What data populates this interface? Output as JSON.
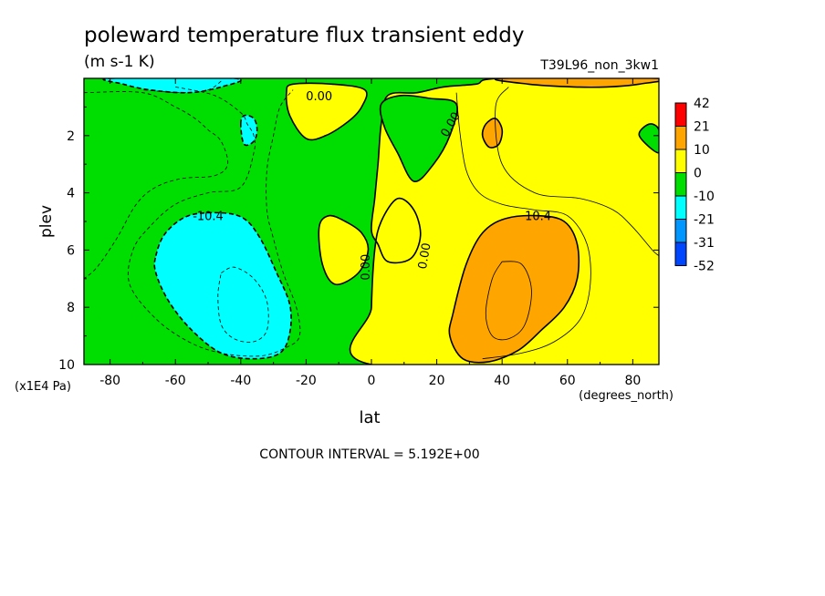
{
  "chart_data": {
    "type": "heatmap",
    "title": "poleward temperature flux transient eddy",
    "units": "(m s-1 K)",
    "dataset": "T39L96_non_3kw1",
    "xlabel": "lat",
    "xunits": "(degrees_north)",
    "ylabel": "plev",
    "yunits": "(x1E4 Pa)",
    "xlim": [
      -88,
      88
    ],
    "ylim": [
      10,
      0
    ],
    "xticks": [
      -80,
      -60,
      -40,
      -20,
      0,
      20,
      40,
      60,
      80
    ],
    "xtick_labels": [
      "-80",
      "-60",
      "-40",
      "-20",
      "0",
      "20",
      "40",
      "60",
      "80"
    ],
    "yticks": [
      2,
      4,
      6,
      8,
      10
    ],
    "ytick_labels": [
      "2",
      "4",
      "6",
      "8",
      "10"
    ],
    "footer": "CONTOUR INTERVAL = 5.192E+00",
    "colorbar": {
      "labels": [
        "42",
        "21",
        "10",
        "0",
        "-10",
        "-21",
        "-31",
        "-52"
      ],
      "colors": [
        "#ff0000",
        "#ffa500",
        "#ffff00",
        "#00dd00",
        "#00ffff",
        "#0096ff",
        "#0046ff"
      ]
    },
    "contour_labels": [
      {
        "text": "0.00",
        "lat": -16,
        "plev": 0.6,
        "rotate": 0
      },
      {
        "text": "0.00",
        "lat": 24,
        "plev": 1.6,
        "rotate": -60
      },
      {
        "text": "-10.4",
        "lat": -50,
        "plev": 4.8,
        "rotate": 0
      },
      {
        "text": "10.4",
        "lat": 51,
        "plev": 4.8,
        "rotate": 0
      },
      {
        "text": "0.00",
        "lat": -2,
        "plev": 6.6,
        "rotate": -90
      },
      {
        "text": "0.00",
        "lat": 16,
        "plev": 6.2,
        "rotate": -80
      }
    ],
    "fill_regions": [
      {
        "name": "green-background",
        "level": "-10 to 0",
        "color": "#00dd00",
        "points": [
          [
            -88,
            10
          ],
          [
            -88,
            0
          ],
          [
            88,
            0
          ],
          [
            88,
            10
          ]
        ]
      },
      {
        "name": "yellow-east",
        "level": "0 to 10",
        "color": "#ffff00",
        "points": [
          [
            0,
            10
          ],
          [
            0,
            8
          ],
          [
            1,
            6
          ],
          [
            3,
            5
          ],
          [
            8,
            4.2
          ],
          [
            13,
            4.6
          ],
          [
            15,
            5.5
          ],
          [
            12,
            6.3
          ],
          [
            5,
            6.4
          ],
          [
            2,
            5.8
          ],
          [
            0,
            5.3
          ],
          [
            1,
            4.2
          ],
          [
            2,
            3
          ],
          [
            3,
            1.6
          ],
          [
            5,
            0.6
          ],
          [
            14,
            0.5
          ],
          [
            22,
            0.3
          ],
          [
            32,
            0.2
          ],
          [
            40,
            0
          ],
          [
            88,
            0
          ],
          [
            88,
            10
          ]
        ]
      },
      {
        "name": "green-upper-pocket",
        "level": "-10 to 0",
        "color": "#00dd00",
        "points": [
          [
            3,
            0.9
          ],
          [
            9,
            0.6
          ],
          [
            18,
            0.7
          ],
          [
            26,
            0.9
          ],
          [
            24,
            2.0
          ],
          [
            19,
            3.0
          ],
          [
            13,
            3.6
          ],
          [
            8,
            2.6
          ],
          [
            4,
            1.7
          ]
        ]
      },
      {
        "name": "yellow-mid-pocket",
        "level": "0 to 10",
        "color": "#ffff00",
        "points": [
          [
            -16,
            5.2
          ],
          [
            -13,
            4.8
          ],
          [
            -8,
            5.0
          ],
          [
            -3,
            5.4
          ],
          [
            -1,
            6.0
          ],
          [
            -4,
            6.8
          ],
          [
            -11,
            7.2
          ],
          [
            -15,
            6.5
          ]
        ]
      },
      {
        "name": "yellow-top",
        "level": "0 to 10",
        "color": "#ffff00",
        "points": [
          [
            -26,
            0.5
          ],
          [
            -24,
            0.2
          ],
          [
            -12,
            0.2
          ],
          [
            -2,
            0.4
          ],
          [
            -3,
            1.0
          ],
          [
            -7,
            1.5
          ],
          [
            -14,
            2.0
          ],
          [
            -20,
            2.1
          ],
          [
            -25,
            1.3
          ]
        ]
      },
      {
        "name": "cyan-south",
        "level": "-21 to -10",
        "color": "#00ffff",
        "points": [
          [
            -66,
            6.2
          ],
          [
            -63,
            5.4
          ],
          [
            -56,
            4.8
          ],
          [
            -46,
            4.7
          ],
          [
            -39,
            4.9
          ],
          [
            -34,
            5.6
          ],
          [
            -29,
            6.8
          ],
          [
            -25,
            7.9
          ],
          [
            -25,
            8.9
          ],
          [
            -28,
            9.6
          ],
          [
            -36,
            9.8
          ],
          [
            -46,
            9.6
          ],
          [
            -55,
            8.8
          ],
          [
            -62,
            7.8
          ],
          [
            -66,
            6.8
          ]
        ]
      },
      {
        "name": "orange-north",
        "level": "10 to 21",
        "color": "#ffa500",
        "points": [
          [
            25,
            8.2
          ],
          [
            29,
            6.5
          ],
          [
            34,
            5.4
          ],
          [
            41,
            4.9
          ],
          [
            51,
            4.8
          ],
          [
            59,
            5.0
          ],
          [
            63,
            5.8
          ],
          [
            63,
            7.0
          ],
          [
            59,
            8.0
          ],
          [
            52,
            8.8
          ],
          [
            45,
            9.5
          ],
          [
            36,
            9.9
          ],
          [
            28,
            9.8
          ],
          [
            24,
            9.0
          ]
        ]
      },
      {
        "name": "cyan-small",
        "level": "-21 to -10",
        "color": "#00ffff",
        "points": [
          [
            -40,
            1.6
          ],
          [
            -39,
            1.3
          ],
          [
            -36,
            1.4
          ],
          [
            -35,
            1.8
          ],
          [
            -36,
            2.2
          ],
          [
            -39,
            2.3
          ]
        ]
      },
      {
        "name": "orange-small",
        "level": "10 to 21",
        "color": "#ffa500",
        "points": [
          [
            34,
            2.0
          ],
          [
            35,
            1.6
          ],
          [
            38,
            1.4
          ],
          [
            40,
            1.8
          ],
          [
            39,
            2.3
          ],
          [
            36,
            2.4
          ]
        ]
      },
      {
        "name": "green-east-edge",
        "level": "-10 to 0",
        "color": "#00dd00",
        "points": [
          [
            88,
            2.6
          ],
          [
            82,
            2.0
          ],
          [
            85,
            1.6
          ],
          [
            88,
            1.8
          ]
        ]
      },
      {
        "name": "cyan-top-corner",
        "level": "-21 to -10",
        "color": "#00ffff",
        "points": [
          [
            -80,
            0
          ],
          [
            -42,
            0
          ],
          [
            -46,
            0.3
          ],
          [
            -56,
            0.5
          ],
          [
            -68,
            0.4
          ],
          [
            -76,
            0.2
          ]
        ]
      },
      {
        "name": "orange-top-corner",
        "level": "10 to 21",
        "color": "#ffa500",
        "points": [
          [
            40,
            0
          ],
          [
            88,
            0
          ],
          [
            82,
            0.2
          ],
          [
            72,
            0.3
          ],
          [
            62,
            0.3
          ],
          [
            48,
            0.2
          ]
        ]
      }
    ],
    "contour_lines": [
      {
        "style": "dashed",
        "weight": "thin",
        "points": [
          [
            -88,
            0.5
          ],
          [
            -70,
            0.5
          ],
          [
            -60,
            1.0
          ],
          [
            -54,
            1.4
          ],
          [
            -50,
            1.8
          ],
          [
            -46,
            2.2
          ],
          [
            -44,
            3.0
          ],
          [
            -48,
            3.4
          ],
          [
            -58,
            3.5
          ],
          [
            -66,
            3.8
          ],
          [
            -72,
            4.4
          ],
          [
            -78,
            5.6
          ],
          [
            -84,
            6.6
          ],
          [
            -88,
            7.0
          ]
        ]
      },
      {
        "style": "dashed",
        "weight": "thin",
        "points": [
          [
            -60,
            0.3
          ],
          [
            -48,
            0.6
          ],
          [
            -40,
            1.2
          ],
          [
            -38,
            1.6
          ],
          [
            -36,
            2.0
          ],
          [
            -36,
            2.6
          ],
          [
            -40,
            3.8
          ],
          [
            -50,
            4.0
          ],
          [
            -60,
            4.4
          ],
          [
            -68,
            5.2
          ],
          [
            -73,
            6.0
          ],
          [
            -74,
            7.2
          ],
          [
            -66,
            8.4
          ],
          [
            -56,
            9.2
          ],
          [
            -46,
            9.6
          ],
          [
            -34,
            9.7
          ],
          [
            -26,
            9.4
          ],
          [
            -22,
            9.0
          ],
          [
            -23,
            8.0
          ],
          [
            -27,
            6.8
          ],
          [
            -30,
            5.6
          ],
          [
            -32,
            4.6
          ],
          [
            -32,
            3.2
          ],
          [
            -30,
            2.0
          ],
          [
            -28,
            1.0
          ],
          [
            -24,
            0.4
          ]
        ]
      },
      {
        "style": "dashed",
        "weight": "thin",
        "points": [
          [
            -46,
            6.8
          ],
          [
            -42,
            6.6
          ],
          [
            -36,
            7.0
          ],
          [
            -32,
            7.8
          ],
          [
            -32,
            8.8
          ],
          [
            -36,
            9.2
          ],
          [
            -42,
            9.1
          ],
          [
            -46,
            8.6
          ],
          [
            -47,
            7.6
          ],
          [
            -46,
            6.8
          ]
        ]
      },
      {
        "style": "dashed",
        "weight": "thin",
        "points": [
          [
            -46,
            0.1
          ],
          [
            -50,
            0.4
          ],
          [
            -58,
            0.5
          ],
          [
            -70,
            0.4
          ]
        ]
      },
      {
        "style": "solid",
        "weight": "thin",
        "points": [
          [
            26,
            0.5
          ],
          [
            27,
            1.8
          ],
          [
            29,
            3.2
          ],
          [
            33,
            4.0
          ],
          [
            40,
            4.4
          ],
          [
            50,
            4.6
          ],
          [
            60,
            4.8
          ],
          [
            66,
            5.8
          ],
          [
            67,
            7.2
          ],
          [
            64,
            8.4
          ],
          [
            56,
            9.2
          ],
          [
            46,
            9.6
          ],
          [
            34,
            9.8
          ]
        ]
      },
      {
        "style": "solid",
        "weight": "thin",
        "points": [
          [
            40,
            6.4
          ],
          [
            46,
            6.5
          ],
          [
            49,
            7.4
          ],
          [
            47,
            8.6
          ],
          [
            42,
            9.1
          ],
          [
            37,
            9.0
          ],
          [
            35,
            8.2
          ],
          [
            37,
            7.0
          ],
          [
            40,
            6.4
          ]
        ]
      },
      {
        "style": "solid",
        "weight": "thin",
        "points": [
          [
            42,
            0.3
          ],
          [
            38,
            1.0
          ],
          [
            40,
            3.0
          ],
          [
            50,
            4.0
          ],
          [
            64,
            4.2
          ],
          [
            74,
            4.6
          ],
          [
            80,
            5.2
          ],
          [
            86,
            6.0
          ],
          [
            88,
            6.2
          ]
        ]
      }
    ]
  }
}
